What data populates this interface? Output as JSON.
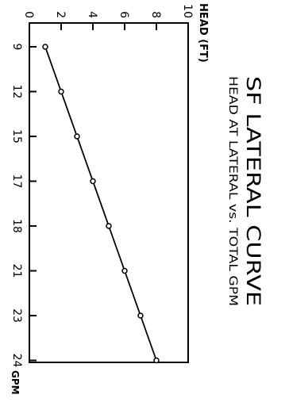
{
  "chart_data": {
    "type": "line",
    "title": "SF LATERAL CURVE",
    "subtitle": "HEAD AT LATERAL vs. TOTAL GPM",
    "xlabel": "GPM",
    "ylabel": "HEAD (FT)",
    "categories": [
      "9",
      "12",
      "15",
      "17",
      "18",
      "21",
      "23",
      "24"
    ],
    "series": [
      {
        "values": [
          1,
          2,
          3,
          4,
          5,
          6,
          7,
          8
        ]
      }
    ],
    "ylim": [
      0,
      10
    ],
    "yticks": [
      "0",
      "2",
      "4",
      "6",
      "8",
      "10"
    ],
    "markers": "open-circle",
    "grid": false,
    "orientation": "rotated-90-clockwise",
    "colors": {
      "line": "#000000",
      "axes": "#000000"
    }
  }
}
